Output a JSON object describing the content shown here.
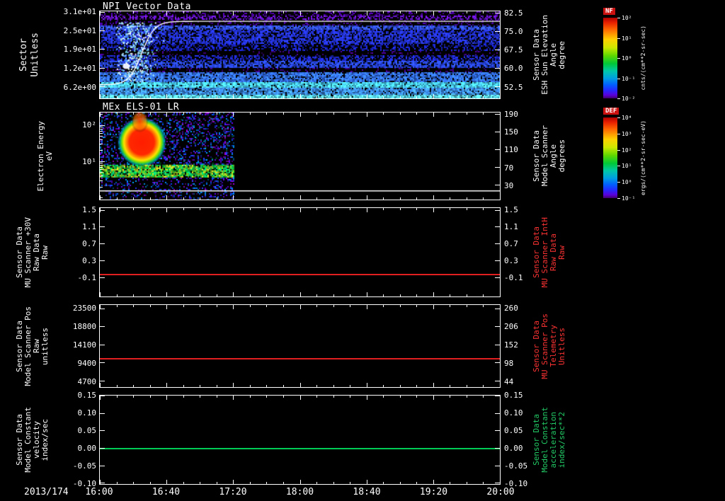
{
  "figure": {
    "background": "#000000",
    "foreground": "#ffffff"
  },
  "chart_data": {
    "type": "heatmap",
    "description": "Stacked time-series quicklook plot: 2 spectrograms (NPI sector counts with sun-elevation overlay, MEx ELS-01 LR electron energy flux) and 3 constant-value line plots, 16:00-20:00 on day 2013/174",
    "time_axis": {
      "date_label": "2013/174",
      "tick_labels": [
        "16:00",
        "16:40",
        "17:20",
        "18:00",
        "18:40",
        "19:20",
        "20:00"
      ]
    },
    "panels": [
      {
        "id": "npi",
        "kind": "spectrogram",
        "title": "NPI Vector Data",
        "left_label_lines": [
          "Sector",
          "Unitless"
        ],
        "left_ticks": [
          {
            "label": "3.1e+01",
            "f": 0.01
          },
          {
            "label": "2.5e+01",
            "f": 0.22
          },
          {
            "label": "1.9e+01",
            "f": 0.43
          },
          {
            "label": "1.2e+01",
            "f": 0.65
          },
          {
            "label": "6.2e+00",
            "f": 0.86
          }
        ],
        "right_label_lines": [
          "Sensor Data",
          "ESH Sun Elevation",
          "Angle",
          "degree"
        ],
        "right_label_color": "#ffffff",
        "right_ticks": [
          {
            "label": "82.5",
            "f": 0.02
          },
          {
            "label": "75.0",
            "f": 0.23
          },
          {
            "label": "67.5",
            "f": 0.44
          },
          {
            "label": "60.0",
            "f": 0.65
          },
          {
            "label": "52.5",
            "f": 0.86
          }
        ],
        "overlay_curve": {
          "name": "ESH sun elevation angle",
          "color": "#ffffff",
          "summary": "~52.5 deg at 16:00, steep S-curve rise 16:05-16:35, then constant ~82 deg until 20:00"
        },
        "colorbar": {
          "title": "NF",
          "units": "cnts/(cm**2-sr-sec)",
          "ticks": [
            "10²",
            "10¹",
            "10⁰",
            "10⁻¹",
            "10⁻²"
          ]
        }
      },
      {
        "id": "els",
        "kind": "spectrogram",
        "title": "MEx ELS-01 LR",
        "left_label_lines": [
          "Electron Energy",
          "eV"
        ],
        "left_ticks": [
          {
            "label": "10²",
            "f": 0.144
          },
          {
            "label": "10¹",
            "f": 0.56
          }
        ],
        "right_label_lines": [
          "Sensor Data",
          "Model Scanner",
          "Angle",
          "degrees"
        ],
        "right_label_color": "#ffffff",
        "right_ticks": [
          {
            "label": "190",
            "f": 0.02
          },
          {
            "label": "150",
            "f": 0.22
          },
          {
            "label": "110",
            "f": 0.42
          },
          {
            "label": "70",
            "f": 0.63
          },
          {
            "label": "30",
            "f": 0.83
          }
        ],
        "data_extent": "counts only 16:00-17:20; intense red blob ~16:05-16:25 between ~15-100 eV, green-yellow band ~8-15 eV across interval, black after 17:20",
        "colorbar": {
          "title": "DEF",
          "units": "ergs/(cm**2-sr-sec-eV)",
          "ticks": [
            "10⁴",
            "10³",
            "10²",
            "10¹",
            "10⁰",
            "10⁻¹"
          ]
        }
      },
      {
        "id": "mu30v",
        "kind": "line",
        "left_label_lines": [
          "Sensor Data",
          "MU Scanner +30V",
          "Raw Data",
          "Raw"
        ],
        "left_ticks": [
          {
            "label": "1.5",
            "f": 0.02
          },
          {
            "label": "1.1",
            "f": 0.21
          },
          {
            "label": "0.7",
            "f": 0.4
          },
          {
            "label": "0.3",
            "f": 0.59
          },
          {
            "label": "-0.1",
            "f": 0.78
          }
        ],
        "right_label_lines": [
          "Sensor Data",
          "MU Scanner IntH",
          "Raw Data",
          "Raw"
        ],
        "right_label_color": "#ff3333",
        "right_ticks": [
          {
            "label": "1.5",
            "f": 0.02
          },
          {
            "label": "1.1",
            "f": 0.21
          },
          {
            "label": "0.7",
            "f": 0.4
          },
          {
            "label": "0.3",
            "f": 0.59
          },
          {
            "label": "-0.1",
            "f": 0.78
          }
        ],
        "series": {
          "name": "MU Scanner +30V Raw Data Raw",
          "color": "#e02020",
          "constant_value": 0.0,
          "f": 0.745
        }
      },
      {
        "id": "scanpos",
        "kind": "line",
        "left_label_lines": [
          "Sensor Data",
          "Model Scanner Pos",
          "Raw",
          "unitless"
        ],
        "left_ticks": [
          {
            "label": "23500",
            "f": 0.04
          },
          {
            "label": "18800",
            "f": 0.26
          },
          {
            "label": "14100",
            "f": 0.48
          },
          {
            "label": "9400",
            "f": 0.7
          },
          {
            "label": "4700",
            "f": 0.92
          }
        ],
        "right_label_lines": [
          "Sensor Data",
          "MU Scanner Pos",
          "Telemetry",
          "Unitless"
        ],
        "right_label_color": "#ff3333",
        "right_ticks": [
          {
            "label": "260",
            "f": 0.04
          },
          {
            "label": "206",
            "f": 0.26
          },
          {
            "label": "152",
            "f": 0.48
          },
          {
            "label": "98",
            "f": 0.7
          },
          {
            "label": "44",
            "f": 0.92
          }
        ],
        "series": {
          "name": "Model Scanner Pos Raw",
          "color": "#e02020",
          "constant_value": 10400,
          "f": 0.65
        }
      },
      {
        "id": "modconst",
        "kind": "line",
        "left_label_lines": [
          "Sensor Data",
          "Model Constant",
          "velocity",
          "index/sec"
        ],
        "left_ticks": [
          {
            "label": "0.15",
            "f": 0.0
          },
          {
            "label": "0.10",
            "f": 0.2
          },
          {
            "label": "0.05",
            "f": 0.39
          },
          {
            "label": "0.00",
            "f": 0.59
          },
          {
            "label": "-0.05",
            "f": 0.79
          },
          {
            "label": "-0.10",
            "f": 0.985
          }
        ],
        "right_label_lines": [
          "Sensor Data",
          "Model Constant",
          "acceleration",
          "index/sec**2"
        ],
        "right_label_color": "#22cc66",
        "right_ticks": [
          {
            "label": "0.15",
            "f": 0.0
          },
          {
            "label": "0.10",
            "f": 0.2
          },
          {
            "label": "0.05",
            "f": 0.39
          },
          {
            "label": "0.00",
            "f": 0.59
          },
          {
            "label": "-0.05",
            "f": 0.79
          },
          {
            "label": "-0.10",
            "f": 0.985
          }
        ],
        "series": {
          "name": "Model Constant velocity",
          "color": "#00cc55",
          "constant_value": 0.0,
          "f": 0.59
        }
      }
    ],
    "npi_bands": [
      {
        "f0": 0.0,
        "f1": 0.045,
        "c": [
          70,
          0,
          150
        ],
        "d": 0.3
      },
      {
        "f0": 0.045,
        "f1": 0.09,
        "c": [
          100,
          20,
          200
        ],
        "d": 0.55
      },
      {
        "f0": 0.09,
        "f1": 0.16,
        "c": [
          60,
          0,
          140
        ],
        "d": 0.25
      },
      {
        "f0": 0.16,
        "f1": 0.21,
        "c": [
          50,
          80,
          230
        ],
        "d": 0.85
      },
      {
        "f0": 0.21,
        "f1": 0.37,
        "c": [
          35,
          50,
          215
        ],
        "d": 0.72
      },
      {
        "f0": 0.37,
        "f1": 0.445,
        "c": [
          25,
          35,
          190
        ],
        "d": 0.45
      },
      {
        "f0": 0.445,
        "f1": 0.5,
        "c": [
          60,
          0,
          120
        ],
        "d": 0.12
      },
      {
        "f0": 0.5,
        "f1": 0.56,
        "c": [
          30,
          40,
          200
        ],
        "d": 0.55
      },
      {
        "f0": 0.56,
        "f1": 0.645,
        "c": [
          40,
          70,
          230
        ],
        "d": 0.78
      },
      {
        "f0": 0.645,
        "f1": 0.69,
        "c": [
          60,
          0,
          130
        ],
        "d": 0.18
      },
      {
        "f0": 0.69,
        "f1": 0.8,
        "c": [
          50,
          110,
          235
        ],
        "d": 0.85
      },
      {
        "f0": 0.8,
        "f1": 0.87,
        "c": [
          70,
          200,
          235
        ],
        "d": 0.95
      },
      {
        "f0": 0.87,
        "f1": 0.955,
        "c": [
          60,
          140,
          235
        ],
        "d": 0.88
      },
      {
        "f0": 0.955,
        "f1": 1.0,
        "c": [
          90,
          220,
          240
        ],
        "d": 0.97
      }
    ]
  }
}
